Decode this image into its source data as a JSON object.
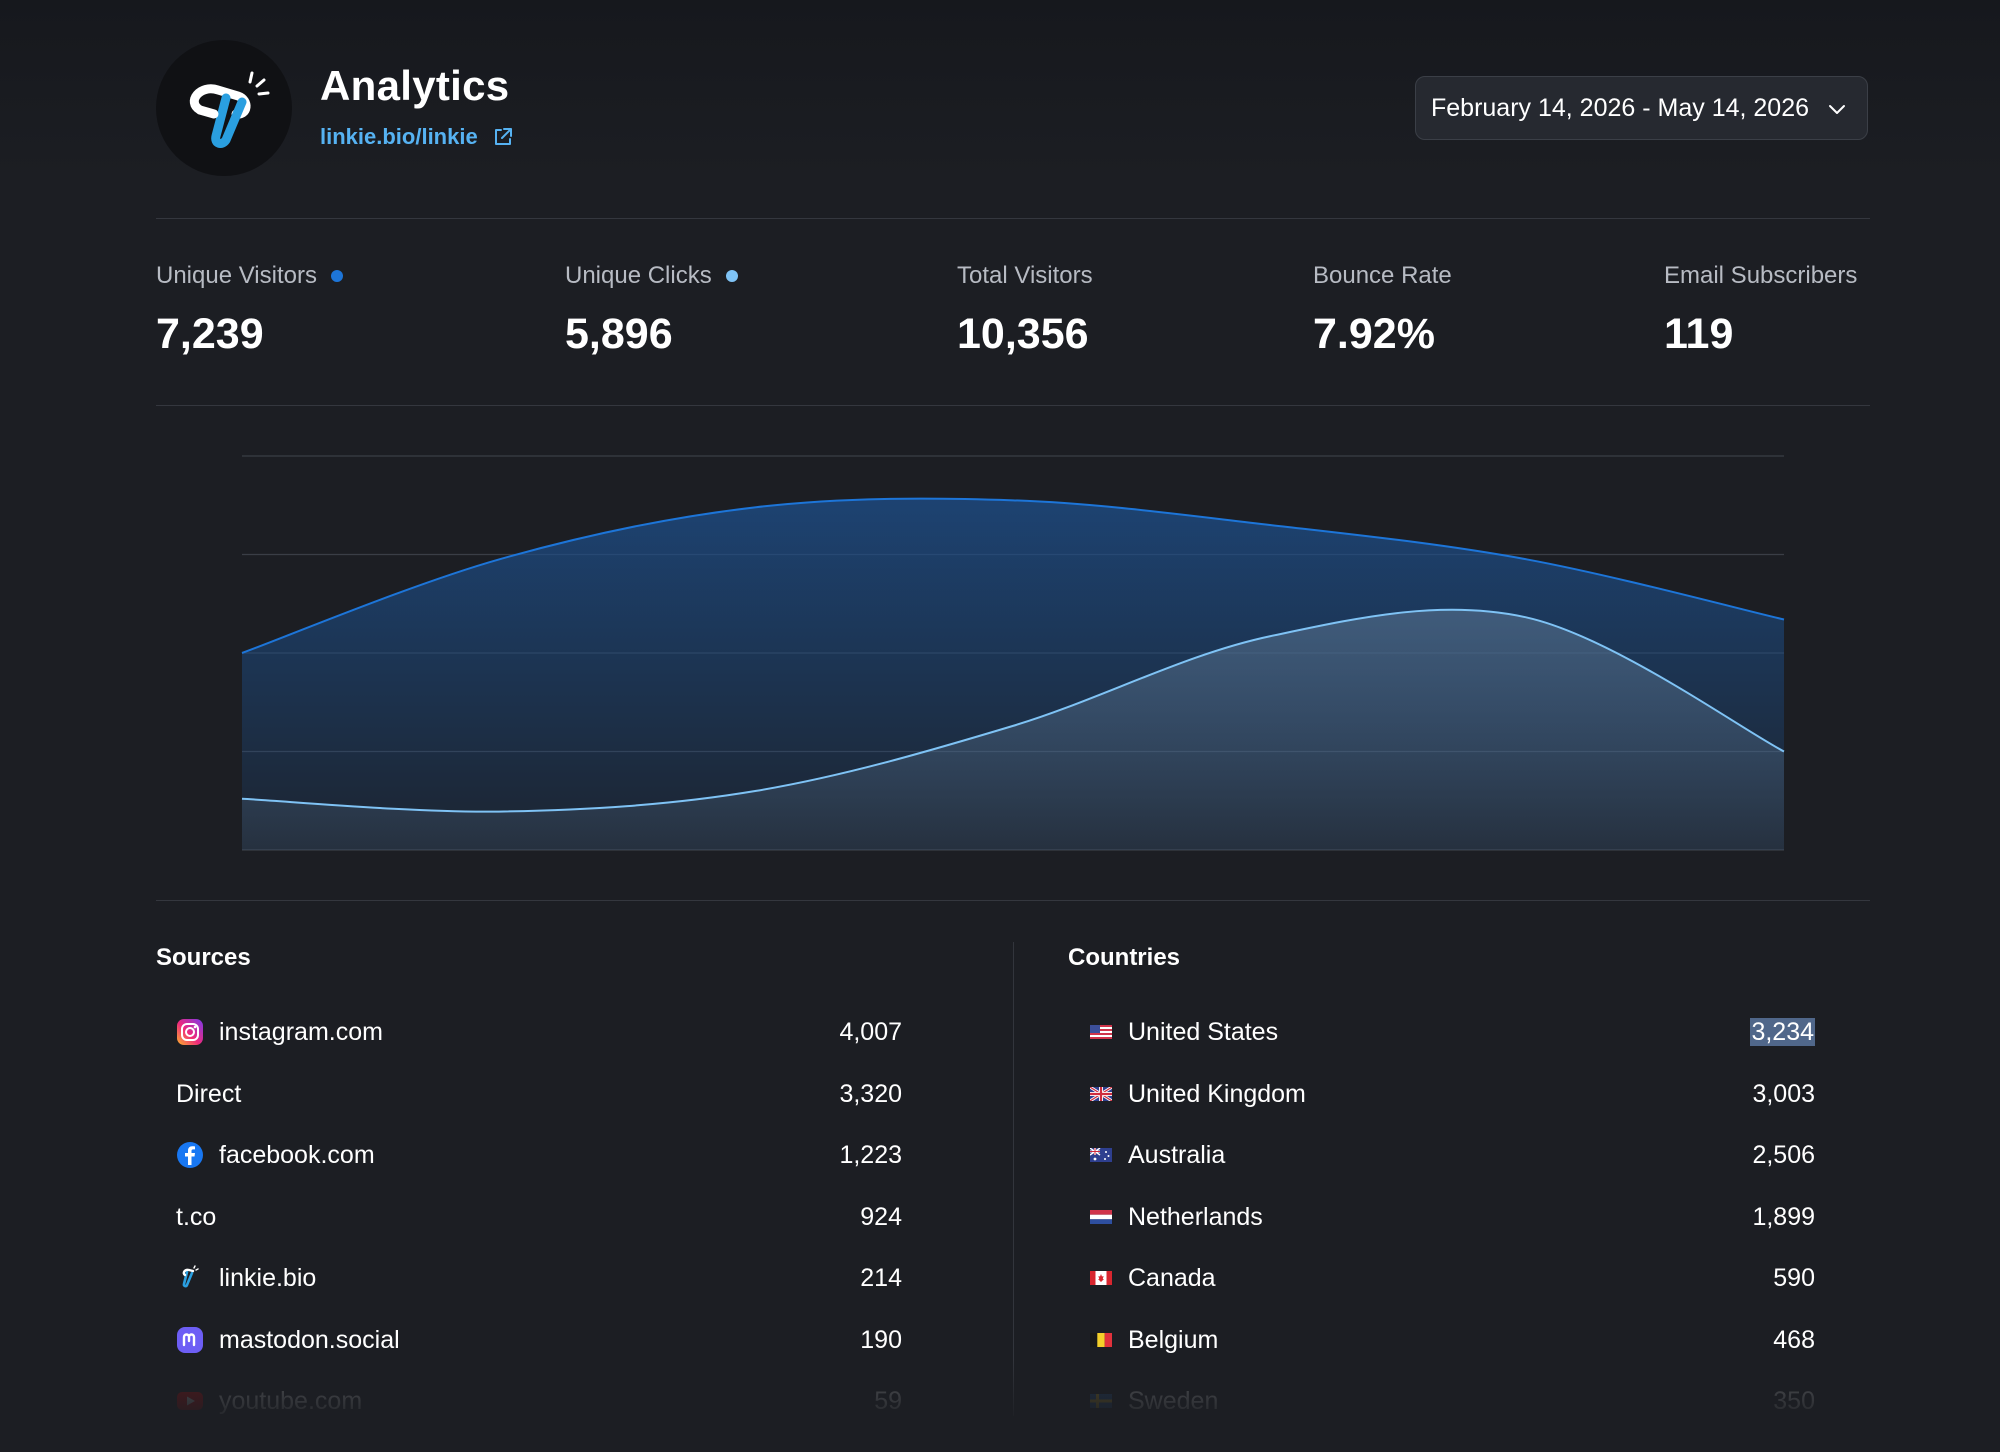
{
  "header": {
    "title": "Analytics",
    "profile_link": "linkie.bio/linkie",
    "date_range": "February 14, 2026 - May 14, 2026"
  },
  "stats": [
    {
      "label": "Unique Visitors",
      "value": "7,239",
      "dot_color": "#1d75d8"
    },
    {
      "label": "Unique Clicks",
      "value": "5,896",
      "dot_color": "#7fc3f5"
    },
    {
      "label": "Total Visitors",
      "value": "10,356"
    },
    {
      "label": "Bounce Rate",
      "value": "7.92%"
    },
    {
      "label": "Email Subscribers",
      "value": "119"
    }
  ],
  "colors": {
    "accent_link": "#56b2f2",
    "visitors_series": "#1d75d8",
    "clicks_series": "#7fc3f5",
    "background": "#1c1e23"
  },
  "chart_data": {
    "type": "area",
    "grid": true,
    "legend": "none",
    "ylim": [
      0,
      4
    ],
    "x": [
      0,
      1,
      2,
      3,
      4,
      5,
      6
    ],
    "series": [
      {
        "values": [
          2.0,
          2.95,
          3.48,
          3.55,
          3.3,
          2.95,
          2.34
        ]
      },
      {
        "values": [
          0.52,
          0.39,
          0.6,
          1.26,
          2.17,
          2.36,
          1.0
        ]
      }
    ]
  },
  "sources": {
    "title": "Sources",
    "items": [
      {
        "label": "instagram.com",
        "value": "4,007",
        "icon": "instagram-icon"
      },
      {
        "label": "Direct",
        "value": "3,320"
      },
      {
        "label": "facebook.com",
        "value": "1,223",
        "icon": "facebook-icon"
      },
      {
        "label": "t.co",
        "value": "924"
      },
      {
        "label": "linkie.bio",
        "value": "214",
        "icon": "linkie-icon"
      },
      {
        "label": "mastodon.social",
        "value": "190",
        "icon": "mastodon-icon"
      },
      {
        "label": "youtube.com",
        "value": "59",
        "icon": "youtube-icon"
      }
    ]
  },
  "countries": {
    "title": "Countries",
    "items": [
      {
        "label": "United States",
        "value": "3,234",
        "icon": "us-flag-icon"
      },
      {
        "label": "United Kingdom",
        "value": "3,003",
        "icon": "uk-flag-icon"
      },
      {
        "label": "Australia",
        "value": "2,506",
        "icon": "australia-flag-icon"
      },
      {
        "label": "Netherlands",
        "value": "1,899",
        "icon": "netherlands-flag-icon"
      },
      {
        "label": "Canada",
        "value": "590",
        "icon": "canada-flag-icon"
      },
      {
        "label": "Belgium",
        "value": "468",
        "icon": "belgium-flag-icon"
      },
      {
        "label": "Sweden",
        "value": "350",
        "icon": "sweden-flag-icon"
      }
    ]
  }
}
